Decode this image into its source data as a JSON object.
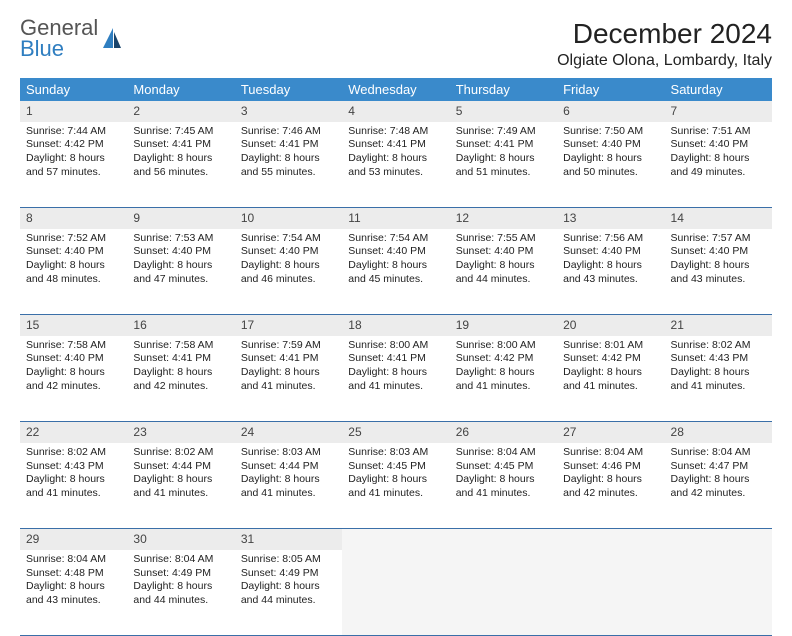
{
  "brand": {
    "general": "General",
    "blue": "Blue"
  },
  "title": "December 2024",
  "location": "Olgiate Olona, Lombardy, Italy",
  "colors": {
    "header_bg": "#3a8acb",
    "row_sep": "#3a6fa8",
    "daynum_bg": "#ececec",
    "empty_bg": "#f5f5f5",
    "brand_blue": "#2f7ec0"
  },
  "days": [
    "Sunday",
    "Monday",
    "Tuesday",
    "Wednesday",
    "Thursday",
    "Friday",
    "Saturday"
  ],
  "weeks": [
    [
      {
        "n": "1",
        "sr": "7:44 AM",
        "ss": "4:42 PM",
        "dl": "8 hours and 57 minutes."
      },
      {
        "n": "2",
        "sr": "7:45 AM",
        "ss": "4:41 PM",
        "dl": "8 hours and 56 minutes."
      },
      {
        "n": "3",
        "sr": "7:46 AM",
        "ss": "4:41 PM",
        "dl": "8 hours and 55 minutes."
      },
      {
        "n": "4",
        "sr": "7:48 AM",
        "ss": "4:41 PM",
        "dl": "8 hours and 53 minutes."
      },
      {
        "n": "5",
        "sr": "7:49 AM",
        "ss": "4:41 PM",
        "dl": "8 hours and 51 minutes."
      },
      {
        "n": "6",
        "sr": "7:50 AM",
        "ss": "4:40 PM",
        "dl": "8 hours and 50 minutes."
      },
      {
        "n": "7",
        "sr": "7:51 AM",
        "ss": "4:40 PM",
        "dl": "8 hours and 49 minutes."
      }
    ],
    [
      {
        "n": "8",
        "sr": "7:52 AM",
        "ss": "4:40 PM",
        "dl": "8 hours and 48 minutes."
      },
      {
        "n": "9",
        "sr": "7:53 AM",
        "ss": "4:40 PM",
        "dl": "8 hours and 47 minutes."
      },
      {
        "n": "10",
        "sr": "7:54 AM",
        "ss": "4:40 PM",
        "dl": "8 hours and 46 minutes."
      },
      {
        "n": "11",
        "sr": "7:54 AM",
        "ss": "4:40 PM",
        "dl": "8 hours and 45 minutes."
      },
      {
        "n": "12",
        "sr": "7:55 AM",
        "ss": "4:40 PM",
        "dl": "8 hours and 44 minutes."
      },
      {
        "n": "13",
        "sr": "7:56 AM",
        "ss": "4:40 PM",
        "dl": "8 hours and 43 minutes."
      },
      {
        "n": "14",
        "sr": "7:57 AM",
        "ss": "4:40 PM",
        "dl": "8 hours and 43 minutes."
      }
    ],
    [
      {
        "n": "15",
        "sr": "7:58 AM",
        "ss": "4:40 PM",
        "dl": "8 hours and 42 minutes."
      },
      {
        "n": "16",
        "sr": "7:58 AM",
        "ss": "4:41 PM",
        "dl": "8 hours and 42 minutes."
      },
      {
        "n": "17",
        "sr": "7:59 AM",
        "ss": "4:41 PM",
        "dl": "8 hours and 41 minutes."
      },
      {
        "n": "18",
        "sr": "8:00 AM",
        "ss": "4:41 PM",
        "dl": "8 hours and 41 minutes."
      },
      {
        "n": "19",
        "sr": "8:00 AM",
        "ss": "4:42 PM",
        "dl": "8 hours and 41 minutes."
      },
      {
        "n": "20",
        "sr": "8:01 AM",
        "ss": "4:42 PM",
        "dl": "8 hours and 41 minutes."
      },
      {
        "n": "21",
        "sr": "8:02 AM",
        "ss": "4:43 PM",
        "dl": "8 hours and 41 minutes."
      }
    ],
    [
      {
        "n": "22",
        "sr": "8:02 AM",
        "ss": "4:43 PM",
        "dl": "8 hours and 41 minutes."
      },
      {
        "n": "23",
        "sr": "8:02 AM",
        "ss": "4:44 PM",
        "dl": "8 hours and 41 minutes."
      },
      {
        "n": "24",
        "sr": "8:03 AM",
        "ss": "4:44 PM",
        "dl": "8 hours and 41 minutes."
      },
      {
        "n": "25",
        "sr": "8:03 AM",
        "ss": "4:45 PM",
        "dl": "8 hours and 41 minutes."
      },
      {
        "n": "26",
        "sr": "8:04 AM",
        "ss": "4:45 PM",
        "dl": "8 hours and 41 minutes."
      },
      {
        "n": "27",
        "sr": "8:04 AM",
        "ss": "4:46 PM",
        "dl": "8 hours and 42 minutes."
      },
      {
        "n": "28",
        "sr": "8:04 AM",
        "ss": "4:47 PM",
        "dl": "8 hours and 42 minutes."
      }
    ],
    [
      {
        "n": "29",
        "sr": "8:04 AM",
        "ss": "4:48 PM",
        "dl": "8 hours and 43 minutes."
      },
      {
        "n": "30",
        "sr": "8:04 AM",
        "ss": "4:49 PM",
        "dl": "8 hours and 44 minutes."
      },
      {
        "n": "31",
        "sr": "8:05 AM",
        "ss": "4:49 PM",
        "dl": "8 hours and 44 minutes."
      },
      null,
      null,
      null,
      null
    ]
  ],
  "labels": {
    "sunrise": "Sunrise:",
    "sunset": "Sunset:",
    "daylight": "Daylight:"
  }
}
